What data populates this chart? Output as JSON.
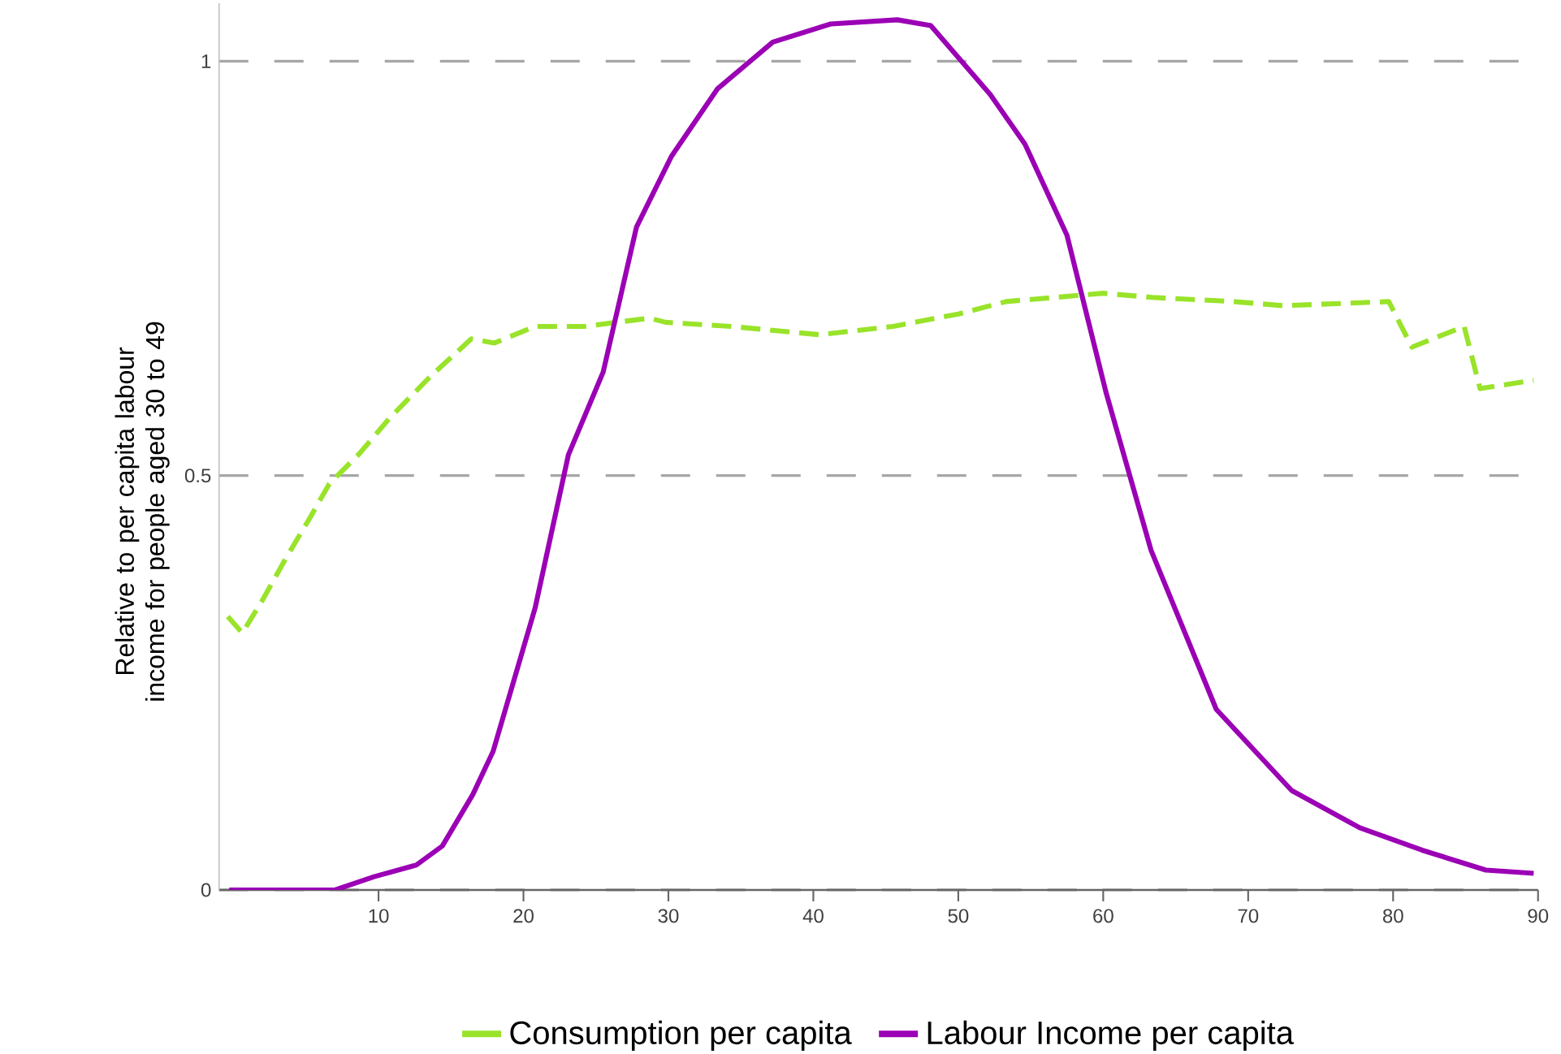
{
  "chart_data": {
    "type": "line",
    "ylabel": "Relative to per capita labour income for people aged 30 to 49",
    "xlim": [
      -1,
      90
    ],
    "ylim": [
      0,
      1.07
    ],
    "xticks": [
      10,
      20,
      30,
      40,
      50,
      60,
      70,
      80,
      90
    ],
    "yticks": [
      0,
      0.5,
      1
    ],
    "grid": "y",
    "legend": "bottom",
    "series": [
      {
        "name": "Consumption per capita",
        "color": "#99e32a",
        "line_style": "dashed",
        "x": [
          -0.4,
          0.6,
          2,
          3.6,
          5.3,
          6.6,
          8.6,
          10.8,
          13.6,
          16.4,
          18,
          20.8,
          24.2,
          28.7,
          29.8,
          34.3,
          40.4,
          45.5,
          50,
          53.3,
          60,
          63.4,
          69,
          72.4,
          79.7,
          81.3,
          84.9,
          86,
          89.7
        ],
        "values": [
          0.33,
          0.31,
          0.35,
          0.4,
          0.45,
          0.49,
          0.525,
          0.57,
          0.62,
          0.665,
          0.66,
          0.68,
          0.68,
          0.69,
          0.685,
          0.68,
          0.67,
          0.68,
          0.695,
          0.71,
          0.72,
          0.715,
          0.71,
          0.705,
          0.71,
          0.655,
          0.68,
          0.605,
          0.615
        ]
      },
      {
        "name": "Labour Income per capita",
        "color": "#9b00b5",
        "line_style": "solid",
        "x": [
          -0.3,
          7,
          9.7,
          12.6,
          14.4,
          16.5,
          17.9,
          20.8,
          23.1,
          25.5,
          27.8,
          30.2,
          33.4,
          37.2,
          41.2,
          45.8,
          48.1,
          52.2,
          54.6,
          57.5,
          60.2,
          63.3,
          67.8,
          73,
          77.7,
          82,
          86.4,
          89.7
        ],
        "values": [
          0,
          0,
          0.016,
          0.03,
          0.053,
          0.115,
          0.167,
          0.34,
          0.525,
          0.625,
          0.8,
          0.885,
          0.967,
          1.023,
          1.045,
          1.05,
          1.043,
          0.96,
          0.9,
          0.79,
          0.6,
          0.41,
          0.218,
          0.12,
          0.075,
          0.048,
          0.024,
          0.02
        ]
      }
    ]
  }
}
